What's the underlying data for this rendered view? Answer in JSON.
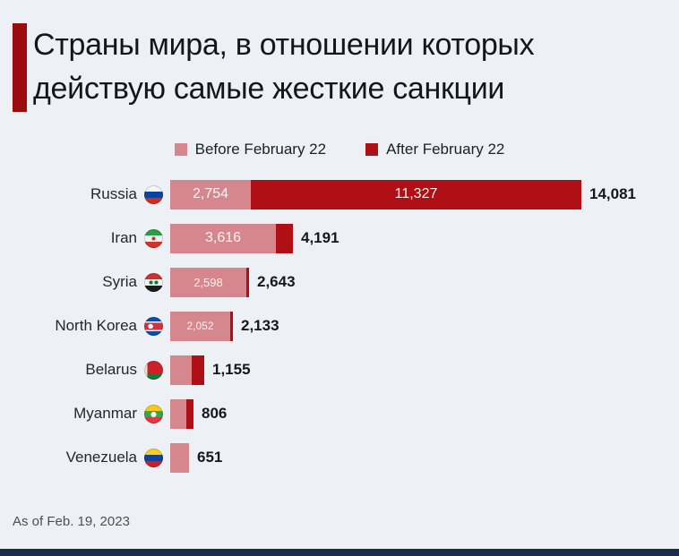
{
  "title": {
    "line1": "Страны мира, в отношении которых",
    "line2": "действую самые жесткие санкции"
  },
  "legend": {
    "before": {
      "label": "Before February 22",
      "color": "#d5878d"
    },
    "after": {
      "label": "After February 22",
      "color": "#ae1016"
    }
  },
  "footer": {
    "note": "As of Feb. 19, 2023"
  },
  "colors": {
    "background": "#edf1f6",
    "title_accent": "#9c0b10",
    "before_bar": "#d5878d",
    "after_bar": "#ae1016",
    "bottom_strip": "#1b2b49"
  },
  "chart_data": {
    "type": "bar",
    "orientation": "horizontal",
    "stacked": true,
    "title": "Страны мира, в отношении которых действую самые жесткие санкции",
    "legend_position": "top",
    "categories": [
      "Russia",
      "Iran",
      "Syria",
      "North Korea",
      "Belarus",
      "Myanmar",
      "Venezuela"
    ],
    "series": [
      {
        "name": "Before February 22",
        "values": [
          2754,
          3616,
          2598,
          2052,
          735,
          560,
          651
        ]
      },
      {
        "name": "After February 22",
        "values": [
          11327,
          575,
          45,
          81,
          420,
          246,
          0
        ]
      }
    ],
    "totals": [
      "14,081",
      "4,191",
      "2,643",
      "2,133",
      "1,155",
      "806",
      "651"
    ],
    "segment_labels_before": [
      "2,754",
      "3,616",
      "2,598",
      "2,052",
      "",
      "",
      ""
    ],
    "segment_labels_after": [
      "11,327",
      "",
      "",
      "",
      "",
      "",
      ""
    ],
    "flags": [
      "ru",
      "ir",
      "sy",
      "kp",
      "by",
      "mm",
      "ve"
    ],
    "xmax": 14081,
    "note": "As of Feb. 19, 2023"
  }
}
